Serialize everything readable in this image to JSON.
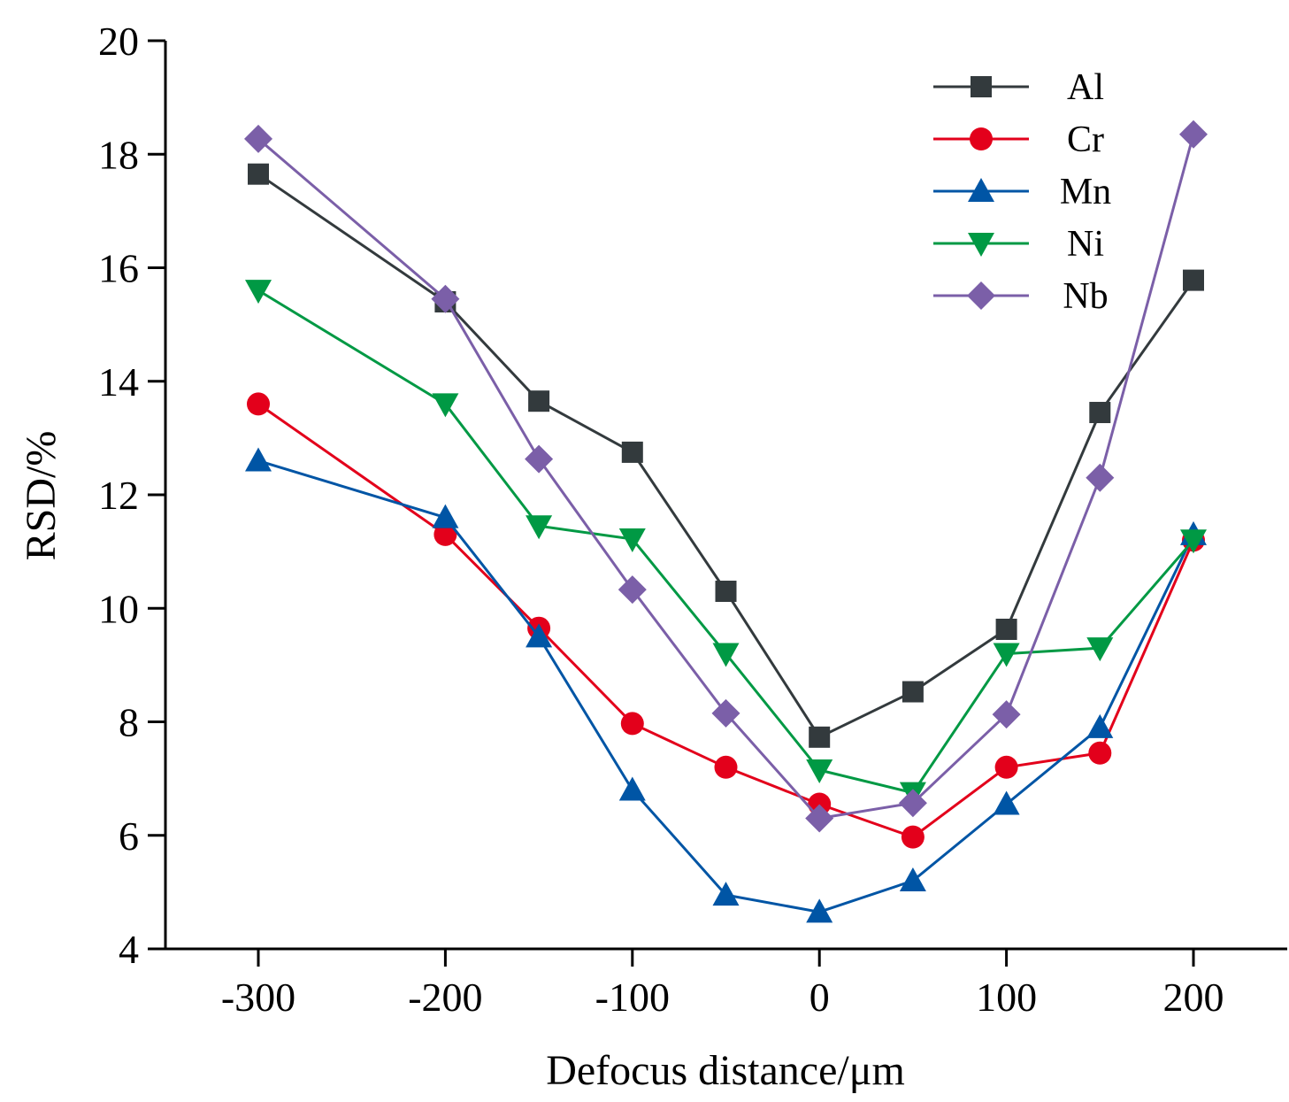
{
  "chart_data": {
    "type": "line",
    "title": "",
    "xlabel": "Defocus distance/μm",
    "ylabel": "RSD/%",
    "xlim": [
      -350,
      250
    ],
    "ylim": [
      4,
      20
    ],
    "x_ticks": [
      -300,
      -200,
      -100,
      0,
      100,
      200
    ],
    "y_ticks": [
      4,
      6,
      8,
      10,
      12,
      14,
      16,
      18,
      20
    ],
    "x_tick_labels": [
      "-300",
      "-200",
      "-100",
      "0",
      "100",
      "200"
    ],
    "y_tick_labels": [
      "4",
      "6",
      "8",
      "10",
      "12",
      "14",
      "16",
      "18",
      "20"
    ],
    "grid": false,
    "legend_position": "top-right",
    "x": [
      -300,
      -200,
      -150,
      -100,
      -50,
      0,
      50,
      100,
      150,
      200
    ],
    "series": [
      {
        "name": "Al",
        "color": "#333a3d",
        "marker": "square",
        "values": [
          17.65,
          15.4,
          13.65,
          12.75,
          10.3,
          7.73,
          8.53,
          9.63,
          13.45,
          15.78
        ]
      },
      {
        "name": "Cr",
        "color": "#e3001b",
        "marker": "circle",
        "values": [
          13.6,
          11.3,
          9.65,
          7.97,
          7.2,
          6.55,
          5.97,
          7.2,
          7.45,
          11.2
        ]
      },
      {
        "name": "Mn",
        "color": "#0055a5",
        "marker": "triangle-up",
        "values": [
          12.6,
          11.6,
          9.5,
          6.8,
          4.95,
          4.65,
          5.2,
          6.55,
          7.9,
          11.3
        ]
      },
      {
        "name": "Ni",
        "color": "#009944",
        "marker": "triangle-down",
        "values": [
          15.6,
          13.6,
          11.45,
          11.22,
          9.2,
          7.15,
          6.75,
          9.2,
          9.3,
          11.2
        ]
      },
      {
        "name": "Nb",
        "color": "#7b5fa8",
        "marker": "diamond",
        "values": [
          18.27,
          15.45,
          12.63,
          10.33,
          8.15,
          6.3,
          6.57,
          8.13,
          12.3,
          18.35
        ]
      }
    ]
  }
}
